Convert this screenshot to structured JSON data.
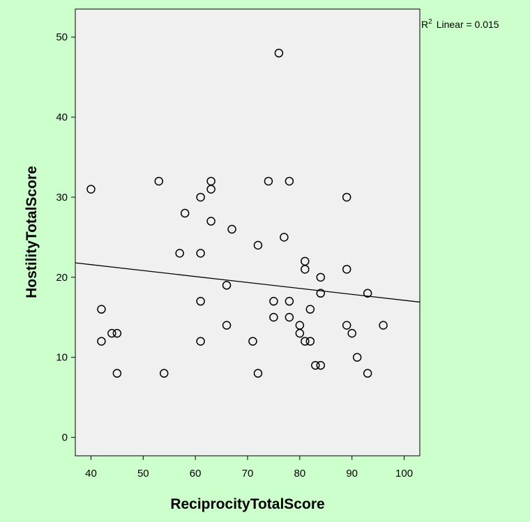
{
  "chart_data": {
    "type": "scatter",
    "xlabel": "ReciprocityTotalScore",
    "ylabel": "HostilityTotalScore",
    "xlim": [
      37,
      103
    ],
    "ylim": [
      -2.3,
      53.5
    ],
    "xticks": [
      "40",
      "50",
      "60",
      "70",
      "80",
      "90",
      "100"
    ],
    "yticks": [
      "0",
      "10",
      "20",
      "30",
      "40",
      "50"
    ],
    "grid": false,
    "colors": {
      "page_background": "#ccffcc",
      "plot_background": "#f0f0f0",
      "marker": "#000000",
      "fit_line": "#000000"
    },
    "points": [
      {
        "x": 40,
        "y": 31
      },
      {
        "x": 42,
        "y": 16
      },
      {
        "x": 42,
        "y": 12
      },
      {
        "x": 44,
        "y": 13
      },
      {
        "x": 45,
        "y": 13
      },
      {
        "x": 45,
        "y": 8
      },
      {
        "x": 53,
        "y": 32
      },
      {
        "x": 54,
        "y": 8
      },
      {
        "x": 57,
        "y": 23
      },
      {
        "x": 58,
        "y": 28
      },
      {
        "x": 61,
        "y": 30
      },
      {
        "x": 61,
        "y": 23
      },
      {
        "x": 61,
        "y": 17
      },
      {
        "x": 61,
        "y": 12
      },
      {
        "x": 63,
        "y": 32
      },
      {
        "x": 63,
        "y": 31
      },
      {
        "x": 63,
        "y": 27
      },
      {
        "x": 66,
        "y": 19
      },
      {
        "x": 66,
        "y": 14
      },
      {
        "x": 67,
        "y": 26
      },
      {
        "x": 71,
        "y": 12
      },
      {
        "x": 72,
        "y": 24
      },
      {
        "x": 72,
        "y": 8
      },
      {
        "x": 74,
        "y": 32
      },
      {
        "x": 75,
        "y": 17
      },
      {
        "x": 75,
        "y": 15
      },
      {
        "x": 76,
        "y": 48
      },
      {
        "x": 77,
        "y": 25
      },
      {
        "x": 78,
        "y": 32
      },
      {
        "x": 78,
        "y": 17
      },
      {
        "x": 78,
        "y": 15
      },
      {
        "x": 80,
        "y": 14
      },
      {
        "x": 80,
        "y": 13
      },
      {
        "x": 81,
        "y": 22
      },
      {
        "x": 81,
        "y": 21
      },
      {
        "x": 81,
        "y": 12
      },
      {
        "x": 82,
        "y": 16
      },
      {
        "x": 82,
        "y": 12
      },
      {
        "x": 83,
        "y": 9
      },
      {
        "x": 84,
        "y": 20
      },
      {
        "x": 84,
        "y": 18
      },
      {
        "x": 84,
        "y": 9
      },
      {
        "x": 89,
        "y": 30
      },
      {
        "x": 89,
        "y": 21
      },
      {
        "x": 89,
        "y": 14
      },
      {
        "x": 90,
        "y": 13
      },
      {
        "x": 91,
        "y": 10
      },
      {
        "x": 93,
        "y": 18
      },
      {
        "x": 93,
        "y": 8
      },
      {
        "x": 96,
        "y": 14
      }
    ],
    "fit_line": {
      "x": [
        37,
        103
      ],
      "y": [
        21.8,
        16.9
      ]
    },
    "annotation": {
      "r_label": "R",
      "r_sup": "2",
      "text": "Linear = 0.015"
    }
  }
}
